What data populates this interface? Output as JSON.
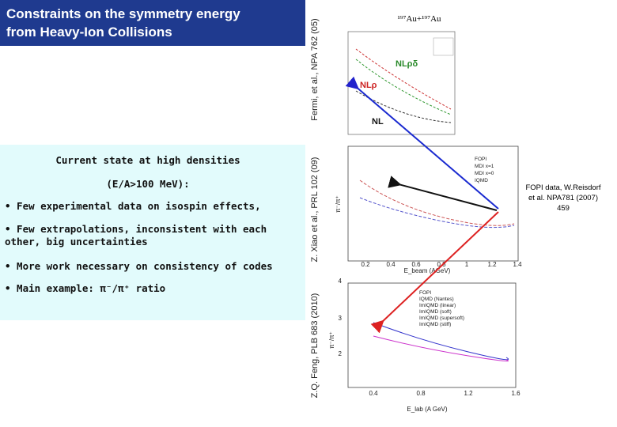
{
  "header": {
    "title_lines": [
      "Constraints on the symmetry energy",
      "from Heavy-Ion Collisions"
    ]
  },
  "content": {
    "heading": "Current state at high densities",
    "subheading": "(E/A>100 MeV):",
    "bullets": [
      "• Few experimental data on isospin effects,",
      "• Few extrapolations, inconsistent with each",
      "other, big uncertainties",
      "• More work necessary on consistency of codes",
      "• Main example: π⁻/π⁺ ratio"
    ]
  },
  "references": [
    "Fermi, et al., NPA 762 (05)",
    "Z. Xiao et al., PRL 102 (09)",
    "Z.Q. Feng, PLB 683 (2010)"
  ],
  "figures": [
    {
      "title": "¹⁹⁷Au+¹⁹⁷Au",
      "labels": [
        "NLρδ",
        "NLρ",
        "NL"
      ]
    },
    {
      "legend": [
        "FOPI",
        "MDI x=1",
        "MDI x=0",
        "IQMD"
      ],
      "y_label": "π⁻/π⁺",
      "x_label": "E_beam (AGeV)",
      "x_ticks": [
        "0.2",
        "0.4",
        "0.6",
        "0.8",
        "1",
        "1.2",
        "1.4"
      ]
    },
    {
      "legend": [
        "FOPI",
        "IQMD (Nantes)",
        "ImIQMD (linear)",
        "ImIQMD (soft)",
        "ImIQMD (supersoft)",
        "ImIQMD (stiff)"
      ],
      "y_label": "π⁻/π⁺",
      "x_label": "E_lab (A GeV)",
      "y_ticks": [
        "4",
        "3",
        "2"
      ],
      "x_ticks": [
        "0.4",
        "0.8",
        "1.2",
        "1.6"
      ]
    }
  ],
  "note": [
    "FOPI data, W.Reisdorf",
    "et al. NPA781 (2007)",
    "459"
  ]
}
